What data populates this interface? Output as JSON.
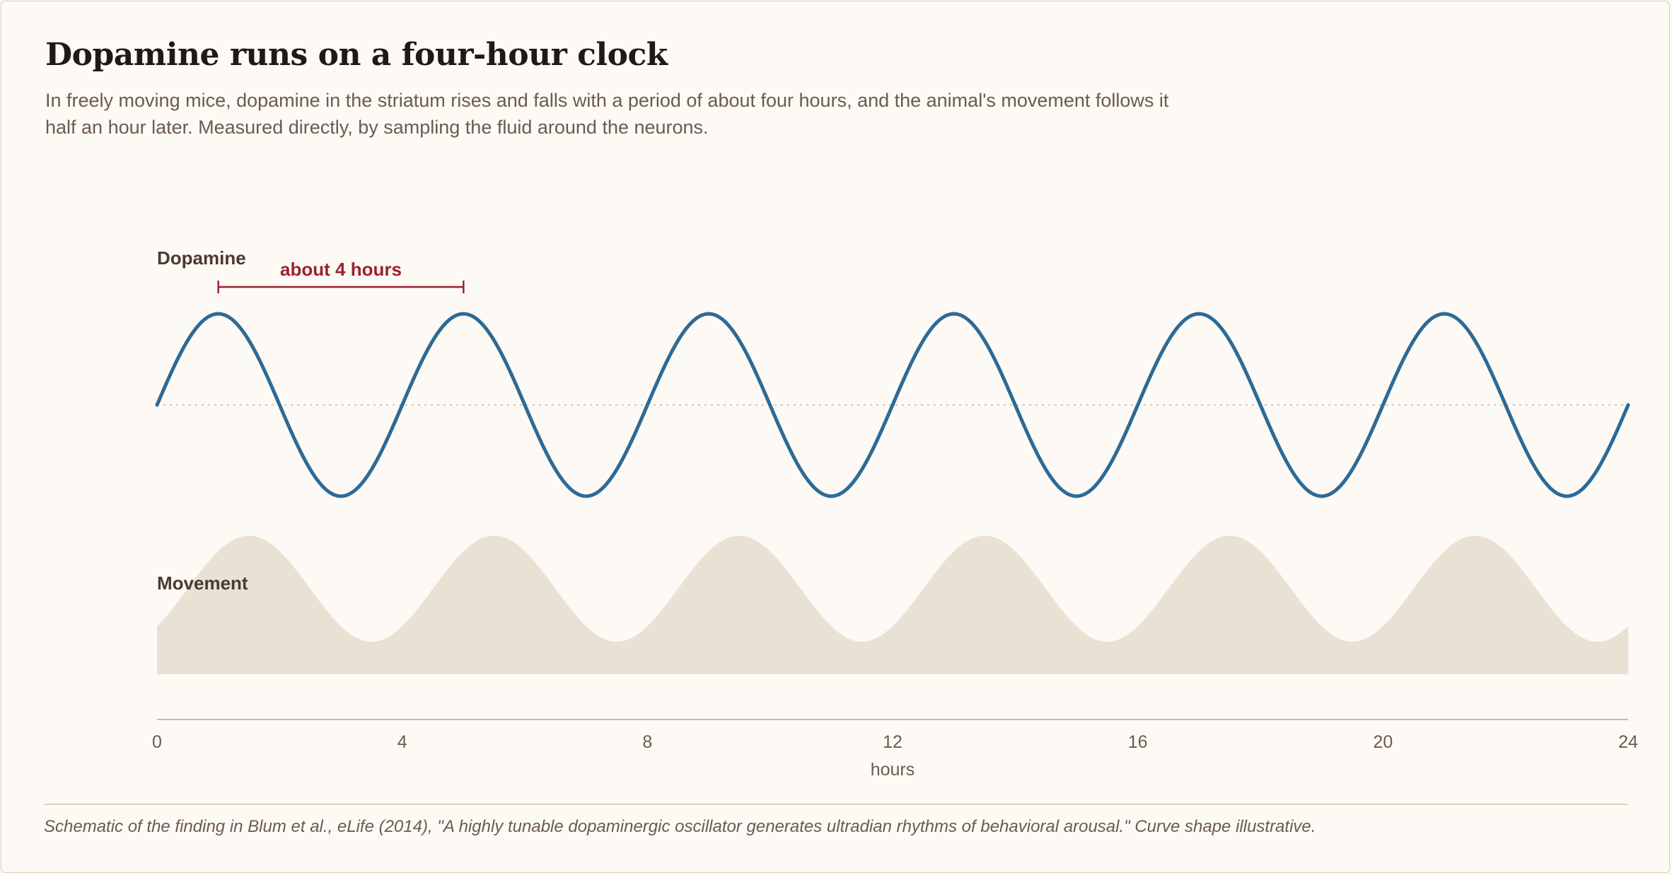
{
  "title": "Dopamine runs on a four-hour clock",
  "subtitle": "In freely moving mice, dopamine in the striatum rises and falls with a period of about four hours, and the animal's movement follows it half an hour later. Measured directly, by sampling the fluid around the neurons.",
  "source": "Schematic of the finding in Blum et al., eLife (2014), \"A highly tunable dopaminergic oscillator generates ultradian rhythms of behavioral arousal.\" Curve shape illustrative.",
  "colors": {
    "dopamine": "#2d6a96",
    "movement": "#e9e1d4",
    "annotation": "#9b2230",
    "axis": "#c9bba6",
    "text": "#6b5b4e",
    "label": "#4a3b30",
    "baseline": "#c8c8c8"
  },
  "chart_data": {
    "type": "line",
    "xlabel": "hours",
    "xlim": [
      0,
      24
    ],
    "xticks": [
      0,
      4,
      8,
      12,
      16,
      20,
      24
    ],
    "grid": false,
    "series": [
      {
        "name": "Dopamine",
        "style": "line",
        "period_hours": 4,
        "phase_shift_hours": 0,
        "peaks_at_hours": [
          1,
          5,
          9,
          13,
          17,
          21
        ],
        "troughs_at_hours": [
          3,
          7,
          11,
          15,
          19,
          23
        ]
      },
      {
        "name": "Movement",
        "style": "filled-area",
        "period_hours": 4,
        "lag_hours": 0.5,
        "peaks_at_hours": [
          1.5,
          5.5,
          9.5,
          13.5,
          17.5,
          21.5
        ],
        "troughs_at_hours": [
          3.5,
          7.5,
          11.5,
          15.5,
          19.5,
          23.5
        ]
      }
    ],
    "annotations": [
      {
        "text": "about 4 hours",
        "type": "period-bracket",
        "from_hour": 1,
        "to_hour": 5
      }
    ],
    "note": "Curve shape illustrative."
  }
}
